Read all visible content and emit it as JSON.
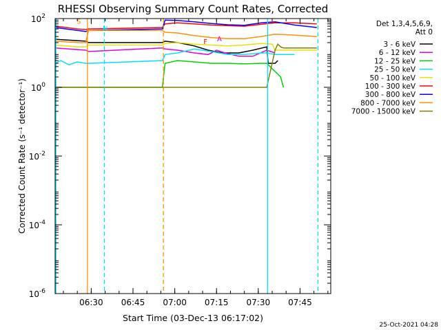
{
  "chart_data": {
    "type": "line",
    "title": "RHESSI Observing Summary Count Rates, Corrected",
    "xlabel": "Start Time (03-Dec-13 06:17:02)",
    "ylabel": "Corrected Count Rate (s⁻¹ detector⁻¹)",
    "x_unit": "minutes after 06:17:02",
    "xlim": [
      0,
      99
    ],
    "ylim": [
      1e-06,
      100
    ],
    "yscale": "log",
    "x_ticks": [
      {
        "value": 12.97,
        "label": "06:30"
      },
      {
        "value": 27.97,
        "label": "06:45"
      },
      {
        "value": 42.97,
        "label": "07:00"
      },
      {
        "value": 57.97,
        "label": "07:15"
      },
      {
        "value": 72.97,
        "label": "07:30"
      },
      {
        "value": 87.97,
        "label": "07:45"
      }
    ],
    "y_ticks": [
      {
        "value": 100,
        "base": "10",
        "exp": "2"
      },
      {
        "value": 1,
        "base": "10",
        "exp": "0"
      },
      {
        "value": 0.01,
        "base": "10",
        "exp": "-2"
      },
      {
        "value": 0.0001,
        "base": "10",
        "exp": "-4"
      },
      {
        "value": 1e-06,
        "base": "10",
        "exp": "-6"
      }
    ],
    "legend": {
      "placement": "right",
      "header": [
        "Det 1,3,4,5,6,9,",
        "Att 0"
      ]
    },
    "series": [
      {
        "name": "3 - 6 keV",
        "color": "#000000",
        "x": [
          0,
          11,
          12,
          38.5,
          39.5,
          44,
          50,
          55,
          60,
          66,
          71,
          76,
          76.5,
          79,
          80
        ],
        "y": [
          25,
          22,
          20,
          20,
          22,
          20,
          16,
          12,
          10,
          10,
          12,
          15,
          5,
          5,
          6
        ]
      },
      {
        "name": "6 - 12 keV",
        "color": "#e000e0",
        "x": [
          0,
          11,
          12,
          38.5,
          39.5,
          44,
          50,
          55,
          58,
          61,
          66,
          71,
          76,
          79
        ],
        "y": [
          14,
          12,
          11,
          14,
          13,
          12,
          10,
          9,
          12,
          10,
          8,
          8,
          12,
          10
        ]
      },
      {
        "name": "12 - 25 keV",
        "color": "#00d000",
        "x": [
          0,
          11,
          12,
          38.5,
          39.5,
          44,
          50,
          56,
          62,
          68,
          74,
          76,
          81,
          82
        ],
        "y": [
          1,
          1,
          1,
          1,
          5,
          6,
          5.5,
          5,
          5,
          4.8,
          5,
          5,
          2,
          1
        ]
      },
      {
        "name": "25 - 50 keV",
        "color": "#00e0ff",
        "x": [
          0,
          2,
          5,
          8,
          11,
          12,
          38.5,
          39.5,
          44,
          50,
          56,
          62,
          68,
          74,
          76,
          79,
          86
        ],
        "y": [
          5,
          6,
          4.5,
          5.5,
          5,
          5,
          6,
          9,
          10,
          13,
          11,
          9,
          9,
          10,
          10,
          9,
          9
        ]
      },
      {
        "name": "50 - 100 keV",
        "color": "#e8e000",
        "x": [
          0,
          4,
          8,
          11,
          12,
          38.5,
          39.5,
          44,
          50,
          56,
          62,
          68,
          74,
          78,
          79,
          94
        ],
        "y": [
          17,
          16,
          15,
          15,
          17,
          17,
          19,
          20,
          18,
          17,
          16,
          17,
          19,
          18,
          12,
          12
        ]
      },
      {
        "name": "100 - 300 keV",
        "color": "#ff0000",
        "x": [
          0,
          4,
          8,
          11,
          12,
          38.5,
          39.5,
          44,
          50,
          56,
          62,
          68,
          74,
          79,
          86,
          94
        ],
        "y": [
          60,
          55,
          50,
          48,
          50,
          55,
          70,
          75,
          70,
          65,
          62,
          60,
          68,
          75,
          75,
          70
        ]
      },
      {
        "name": "300 - 800 keV",
        "color": "#0000ff",
        "x": [
          0,
          4,
          8,
          11,
          12,
          38.5,
          39.5,
          44,
          50,
          56,
          62,
          68,
          74,
          79,
          86,
          94
        ],
        "y": [
          55,
          50,
          45,
          42,
          45,
          50,
          90,
          88,
          80,
          72,
          66,
          64,
          75,
          80,
          65,
          55
        ]
      },
      {
        "name": "800 - 7000 keV",
        "color": "#ff9000",
        "x": [
          0,
          4,
          8,
          11,
          12,
          38.5,
          39.5,
          44,
          50,
          56,
          62,
          68,
          74,
          79,
          86,
          94
        ],
        "y": [
          22,
          21,
          20,
          20,
          45,
          45,
          40,
          38,
          32,
          28,
          26,
          26,
          30,
          35,
          33,
          30
        ]
      },
      {
        "name": "7000 - 15000 keV",
        "color": "#808000",
        "x": [
          0,
          11,
          12,
          38.5,
          39.5,
          45,
          45.5,
          76,
          79,
          80,
          81,
          82,
          94
        ],
        "y": [
          1,
          1,
          1,
          1,
          1,
          1,
          1,
          1,
          12,
          18,
          15,
          14,
          14
        ]
      }
    ],
    "annotations": [
      {
        "text": "S",
        "x": 8.5,
        "y": 70,
        "color": "#ff9000"
      },
      {
        "text": "N",
        "x": 18,
        "y": 45,
        "color": "#00e0ff"
      },
      {
        "text": "F",
        "x": 54,
        "y": 18,
        "color": "#ff0000"
      },
      {
        "text": "A",
        "x": 59,
        "y": 22,
        "color": "#e000e0"
      }
    ],
    "markers": [
      {
        "x": 11.6,
        "style": "solid",
        "color": "#ff9000"
      },
      {
        "x": 17.7,
        "style": "dashed",
        "color": "#00e0ff"
      },
      {
        "x": 38.9,
        "style": "dashed",
        "color": "#ff9000"
      },
      {
        "x": 76.3,
        "style": "solid",
        "color": "#00e0ff"
      },
      {
        "x": 94.4,
        "style": "dashed",
        "color": "#00e0ff"
      }
    ],
    "left_edge_marker_color": "#00e0ff"
  },
  "footer_timestamp": "25-Oct-2021 04:28"
}
